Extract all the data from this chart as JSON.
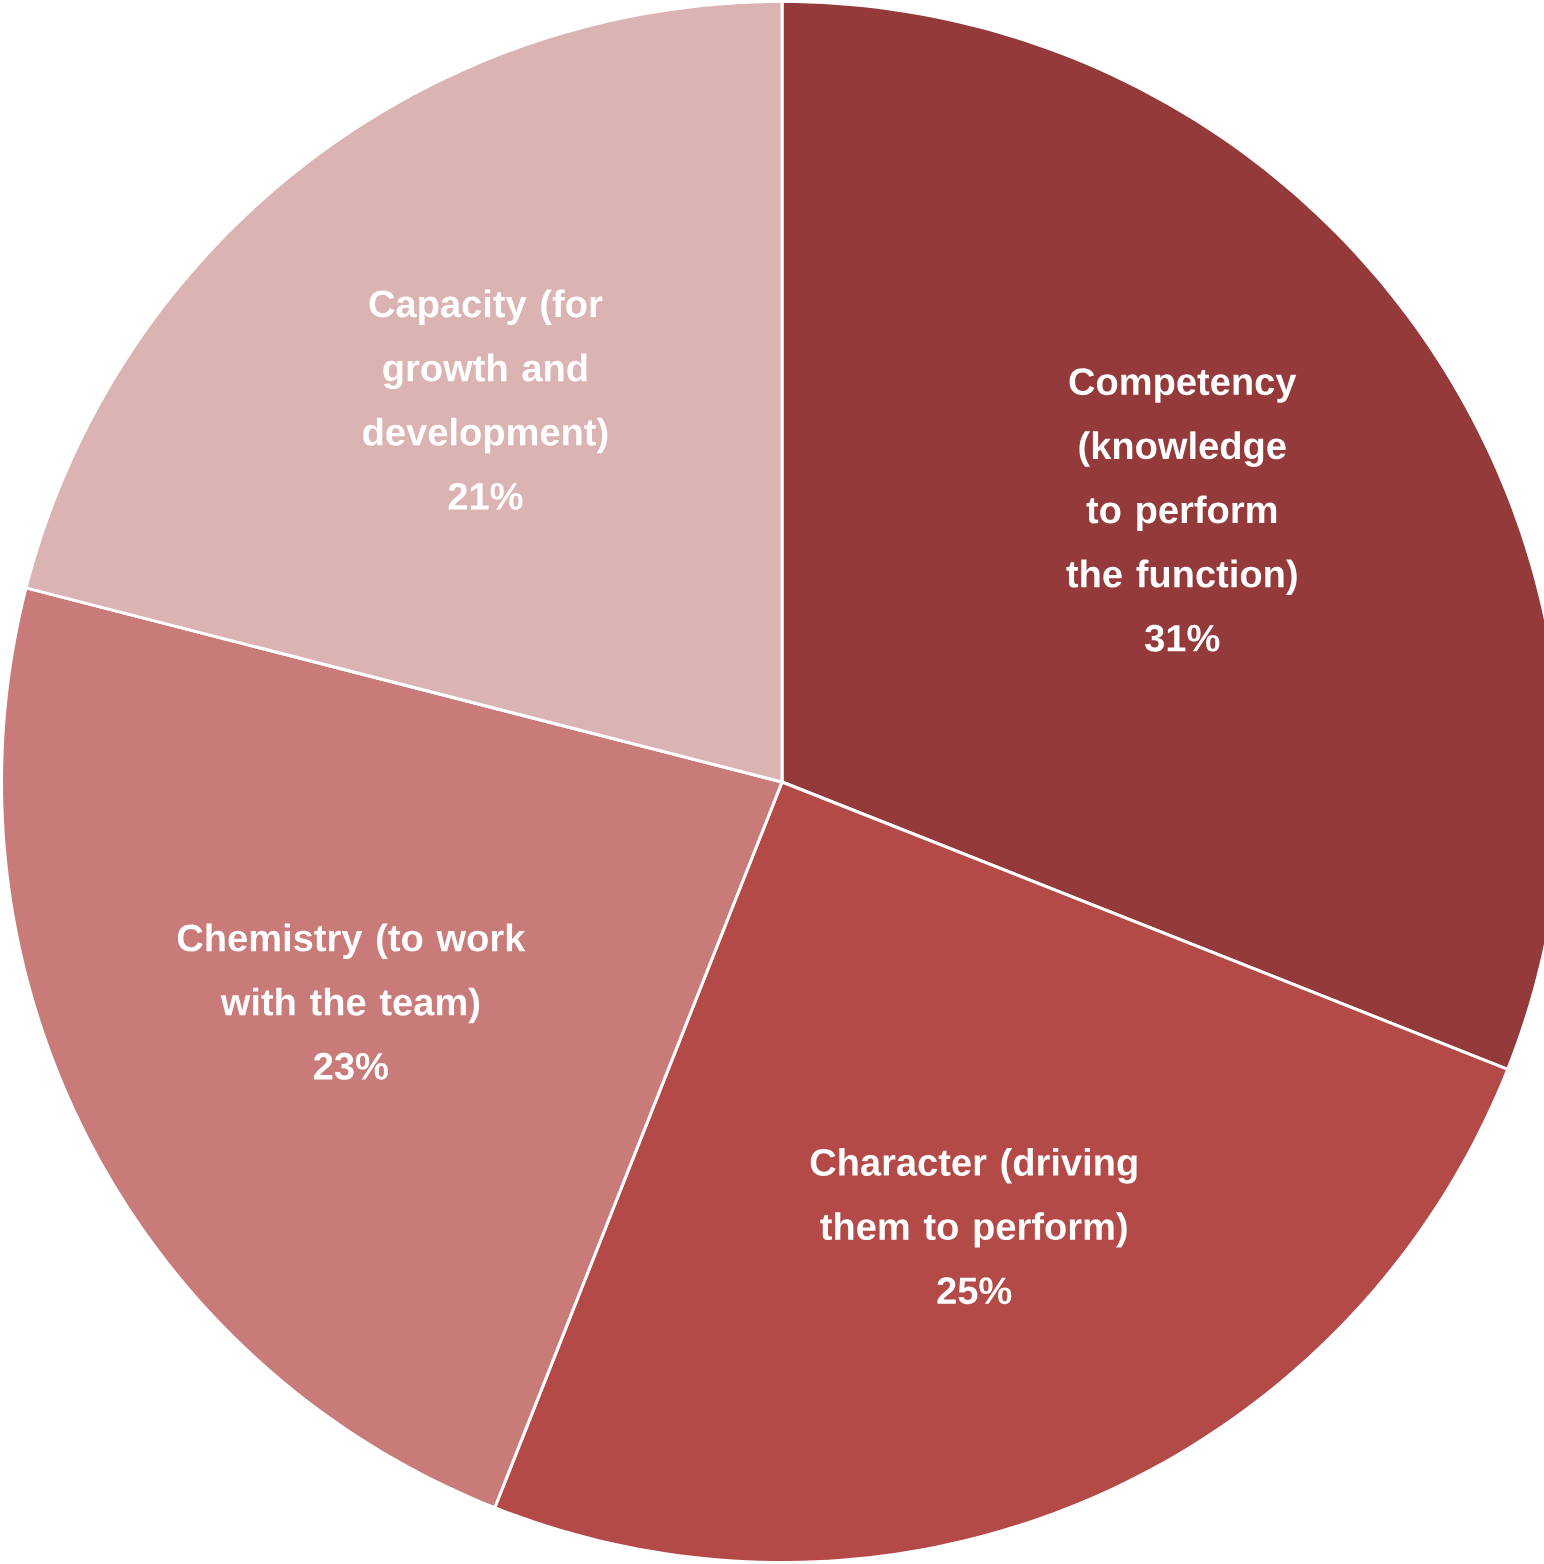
{
  "chart_data": {
    "type": "pie",
    "categories": [
      "Competency (knowledge to perform the function)",
      "Character (driving them to perform)",
      "Chemistry (to work with the team)",
      "Capacity (for growth and development)"
    ],
    "values": [
      31,
      25,
      23,
      21
    ],
    "value_labels": [
      "31%",
      "25%",
      "23%",
      "21%"
    ],
    "colors": [
      "#943a3a",
      "#b34a48",
      "#c87b79",
      "#dcb3b3"
    ]
  }
}
